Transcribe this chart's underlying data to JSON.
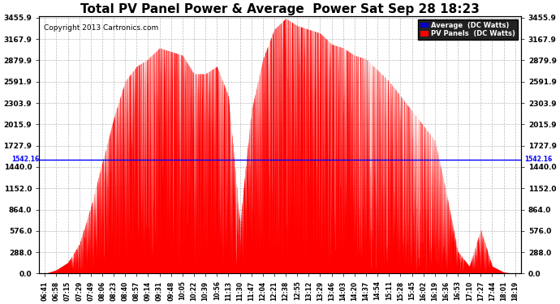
{
  "title": "Total PV Panel Power & Average  Power Sat Sep 28 18:23",
  "copyright": "Copyright 2013 Cartronics.com",
  "avg_value": 1542.16,
  "y_max": 3455.9,
  "y_min": 0.0,
  "y_ticks": [
    0.0,
    288.0,
    576.0,
    864.0,
    1152.0,
    1440.0,
    1727.9,
    2015.9,
    2303.9,
    2591.9,
    2879.9,
    3167.9,
    3455.9
  ],
  "bg_color": "#ffffff",
  "fill_color": "#ff0000",
  "avg_line_color": "#0000ff",
  "grid_color": "#bbbbbb",
  "legend_avg_bg": "#0000cc",
  "legend_pv_bg": "#ff0000",
  "title_fontsize": 11,
  "copyright_fontsize": 6.5,
  "x_tick_fontsize": 5.5,
  "y_tick_fontsize": 6.5,
  "time_labels": [
    "06:41",
    "06:58",
    "07:15",
    "07:29",
    "07:49",
    "08:06",
    "08:23",
    "08:40",
    "08:57",
    "09:14",
    "09:31",
    "09:48",
    "10:05",
    "10:22",
    "10:39",
    "10:56",
    "11:13",
    "11:30",
    "11:47",
    "12:04",
    "12:21",
    "12:38",
    "12:55",
    "13:12",
    "13:29",
    "13:46",
    "14:03",
    "14:20",
    "14:37",
    "14:54",
    "15:11",
    "15:28",
    "15:45",
    "16:02",
    "16:19",
    "16:36",
    "16:53",
    "17:10",
    "17:27",
    "17:44",
    "18:01",
    "18:19"
  ]
}
